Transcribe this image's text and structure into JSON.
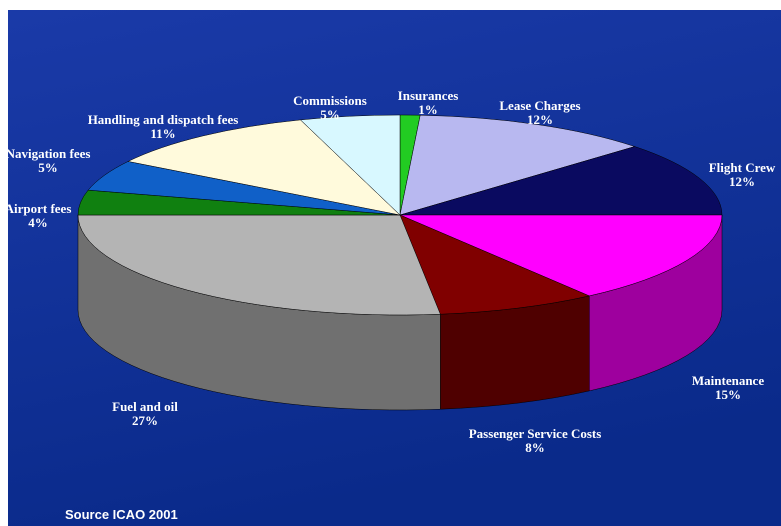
{
  "chart_data": {
    "type": "pie",
    "categories": [
      "Insurances",
      "Lease Charges",
      "Flight Crew",
      "Maintenance",
      "Passenger Service Costs",
      "Fuel and oil",
      "Airport fees",
      "Navigation fees",
      "Handling and dispatch fees",
      "Commissions"
    ],
    "values": [
      1,
      12,
      12,
      15,
      8,
      27,
      4,
      5,
      11,
      5
    ],
    "value_labels": [
      "1%",
      "12%",
      "12%",
      "15%",
      "8%",
      "27%",
      "4%",
      "5%",
      "11%",
      "5%"
    ],
    "colors": [
      "#22cc22",
      "#b8b8f0",
      "#0a0a60",
      "#ff00ff",
      "#800000",
      "#b4b4b4",
      "#108010",
      "#1060c8",
      "#fffadc",
      "#d8f8ff"
    ],
    "source": "Source ICAO 2001"
  }
}
